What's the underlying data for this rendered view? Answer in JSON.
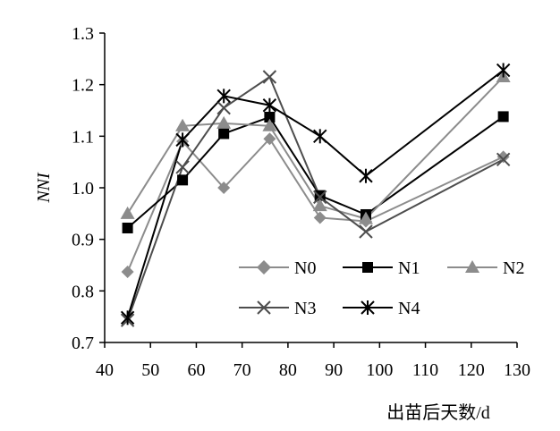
{
  "chart_data": {
    "type": "line",
    "xlabel": "出苗后天数/d",
    "ylabel": "NNI",
    "xlim": [
      40,
      130
    ],
    "ylim": [
      0.7,
      1.3
    ],
    "xticks": [
      40,
      50,
      60,
      70,
      80,
      90,
      100,
      110,
      120,
      130
    ],
    "yticks": [
      0.7,
      0.8,
      0.9,
      1.0,
      1.1,
      1.2,
      1.3
    ],
    "ytick_labels": [
      "0.7",
      "0.8",
      "0.9",
      "1.0",
      "1.1",
      "1.2",
      "1.3"
    ],
    "grid": false,
    "legend_position": "bottom-right inside plot",
    "series": [
      {
        "name": "N0",
        "marker": "diamond",
        "color": "#8c8c8c",
        "x": [
          45,
          57,
          66,
          76,
          87,
          97,
          127
        ],
        "y": [
          0.837,
          1.09,
          1.0,
          1.095,
          0.942,
          0.935,
          1.06
        ]
      },
      {
        "name": "N1",
        "marker": "square",
        "color": "#000000",
        "x": [
          45,
          57,
          66,
          76,
          87,
          97,
          127
        ],
        "y": [
          0.922,
          1.015,
          1.105,
          1.137,
          0.985,
          0.948,
          1.138
        ]
      },
      {
        "name": "N2",
        "marker": "triangle",
        "color": "#8c8c8c",
        "x": [
          45,
          57,
          66,
          76,
          87,
          97,
          127
        ],
        "y": [
          0.95,
          1.12,
          1.125,
          1.12,
          0.965,
          0.94,
          1.215
        ]
      },
      {
        "name": "N3",
        "marker": "x",
        "color": "#4d4d4d",
        "x": [
          45,
          57,
          66,
          76,
          87,
          97,
          127
        ],
        "y": [
          0.743,
          1.04,
          1.155,
          1.215,
          0.982,
          0.915,
          1.055
        ]
      },
      {
        "name": "N4",
        "marker": "star",
        "color": "#000000",
        "x": [
          45,
          57,
          66,
          76,
          87,
          97,
          127
        ],
        "y": [
          0.748,
          1.093,
          1.178,
          1.16,
          1.1,
          1.023,
          1.228
        ]
      }
    ]
  }
}
